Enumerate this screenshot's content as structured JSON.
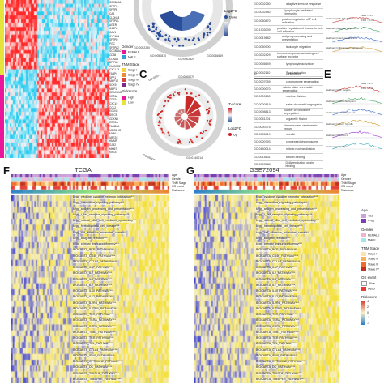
{
  "panels": {
    "C": "C",
    "E": "E",
    "F": "F",
    "G": "G"
  },
  "panelA": {
    "genes": [
      "SCGB1A1",
      "SFTPC",
      "SFTPB",
      "CA4",
      "CLDN18",
      "SFTPA1",
      "AGER",
      "C4BPA",
      "CAV1",
      "CYP4B1",
      "SFTPD",
      "PGC",
      "SFTPA2",
      "SCGB3A2",
      "CD36",
      "CCND1",
      "BPIFA1",
      "HMGCS2",
      "CXCL13",
      "FABP4",
      "SPP1",
      "MMP12",
      "SOX9",
      "MMP1",
      "CEACAM5",
      "KRT6A",
      "TOP2A",
      "CXCL9",
      "CCL2",
      "EGLN3",
      "BIRC5",
      "CDKN3",
      "ERO1A",
      "FAM83A",
      "MIR31HG",
      "MYBL2",
      "UBE2C",
      "HMMR",
      "GJB2",
      "MKI67",
      "KIF14"
    ],
    "legend": {
      "gender_title": "Gender",
      "gender_items": [
        "FEMALE",
        "MALE"
      ],
      "tnm_title": "TNM Stage",
      "tnm_items": [
        "Stage I",
        "Stage II",
        "Stage III",
        "Stage IV"
      ],
      "riskscore_title": "Riskscore",
      "riskscore_items": [
        "High",
        "Low"
      ]
    },
    "colors": {
      "pink": "#e8179b",
      "yellow": "#e6e43c",
      "blue": "#2b9fd6",
      "teal": "#5ad3c7"
    }
  },
  "circleB": {
    "legend_title": "Log2FC",
    "legend_items": [
      "Down",
      "Up"
    ],
    "ticks": [
      "GO:0002250",
      "GO:0050870",
      "GO:0002429",
      "GO:0046649",
      "GO:0042110"
    ]
  },
  "circleC": {
    "legend_zscore": "Z-score",
    "legend_logfc": "Log2FC",
    "legend_items": [
      "Up"
    ],
    "ticks": [
      "GO:0007059",
      "GO:0000070",
      "GO:0000819",
      "GO:0140014",
      "GO:0007067"
    ]
  },
  "goTableTop": {
    "rows": [
      {
        "id": "GO:0002250",
        "desc": "adaptive immune response"
      },
      {
        "id": "GO:0002460",
        "desc": "lymphocyte mediated immunity"
      },
      {
        "id": "GO:0050870",
        "desc": "positive regulation of T cell activation"
      },
      {
        "id": "GO:1903039",
        "desc": "positive regulation of leukocyte cell-cell adhesion"
      },
      {
        "id": "GO:0019882",
        "desc": "antigen processing and presentation"
      },
      {
        "id": "GO:0050900",
        "desc": "leukocyte migration"
      },
      {
        "id": "GO:0002429",
        "desc": "immune response-activating cell surface receptor"
      },
      {
        "id": "GO:0046649",
        "desc": "lymphocyte activation"
      },
      {
        "id": "GO:0042110",
        "desc": "T cell activation"
      },
      {
        "id": "GO:0050852",
        "desc": "T cell receptor signaling pathway"
      }
    ]
  },
  "goTableC": {
    "header": {
      "id": "ID",
      "desc": "Description"
    },
    "rows": [
      {
        "id": "GO:0007059",
        "desc": "chromosome segregation"
      },
      {
        "id": "GO:0000070",
        "desc": "mitotic sister chromatid segregation"
      },
      {
        "id": "GO:0000280",
        "desc": "nuclear division"
      },
      {
        "id": "GO:0000819",
        "desc": "sister chromatid segregation"
      },
      {
        "id": "GO:0098813",
        "desc": "nuclear chromosome segregation"
      },
      {
        "id": "GO:0051301",
        "desc": "organelle fission"
      },
      {
        "id": "GO:0000775",
        "desc": "chromosome, centromeric region"
      },
      {
        "id": "GO:0005819",
        "desc": "spindle"
      },
      {
        "id": "GO:0000793",
        "desc": "condensed chromosome"
      },
      {
        "id": "GO:0140014",
        "desc": "mitotic nuclear division"
      },
      {
        "id": "GO:0015631",
        "desc": "tubulin binding"
      },
      {
        "id": "GO:0003688",
        "desc": "DNA replication origin binding"
      }
    ]
  },
  "panelE": {
    "rows": [
      "[Hallmark] E2F Targets",
      "[Hallmark] G2M Checkpoint",
      "[Hallmark] MYC Targets V1",
      "[Hallmark] Mitotic Spindle",
      "[Hallmark] MTORC1",
      "[Hallmark] Glycolysis"
    ],
    "top_rows": [
      "[Hallmark] IL6 JAK STAT3",
      "[Hallmark] Allograft Rejection",
      "[Hallmark] Interferon Gamma",
      "[Hallmark] Inflammatory Response"
    ],
    "stats": [
      "NES = -1.8",
      "FDR < 0.05",
      "NES = 2.1",
      "FDR < 0.01"
    ]
  },
  "heatF": {
    "title": "TCGA",
    "annotations": [
      "Age",
      "Gender",
      "TNM Stage",
      "OS event",
      "Riskscore"
    ],
    "rows": [
      "kegg_cytokine_cytokine_receptor_interaction***",
      "kegg_chemokine_signaling_pathway***",
      "kegg_antigen_processing_and_presentation***",
      "kegg_t_cell_receptor_signaling_pathway***",
      "kegg_natural_killer_cell_mediated_cytotoxicity***",
      "kegg_hematopoietic_cell_lineage***",
      "kegg_cell_adhesion_molecules_cams***",
      "kegg_allograft_rejection***",
      "kegg_primary_immunodeficiency***",
      "BIOCARTA_BCR_PATHWAY***",
      "BIOCARTA_CD40_PATHWAY***",
      "BIOCARTA_CTLA4_PATHWAY***",
      "BIOCARTA_IL17_PATHWAY***",
      "BIOCARTA_IL2_PATHWAY***",
      "BIOCARTA_IL5_PATHWAY***",
      "BIOCARTA_IL7_PATHWAY***",
      "BIOCARTA_IL10_PATHWAY***",
      "BIOCARTA_IL12_PATHWAY***",
      "BIOCARTA_IL2RB_PATHWAY***",
      "BIOCARTA_IL22BP_PATHWAY***",
      "BIOCARTA_TCR_PATHWAY***",
      "BIOCARTA_TCRA_PATHWAY***",
      "BIOCARTA_CCR5_PATHWAY***",
      "BIOCARTA_TOB1_PATHWAY***",
      "BIOCARTA_TCR_PATHWAY***",
      "BIOCARTA_TEL_PATHWAY***",
      "BIOCARTA_CTLA4_PATHWAY***",
      "BIOCARTA_IFNA_PATHWAY***",
      "BIOCARTA_CYTOKINE_PATHWAY***",
      "BIOCARTA_DC_PATHWAY***",
      "BIOCARTA_TH1TH2_PATHWAY***",
      "BIOCARTA_THELPER_PATHWAY***"
    ]
  },
  "heatG": {
    "title": "GSE72094",
    "annotations": [
      "Age",
      "Gender",
      "TNM Stage",
      "OS event",
      "Riskscore"
    ],
    "rows": [
      "kegg_cytokine_cytokine_receptor_interaction***",
      "kegg_chemokine_signaling_pathway***",
      "kegg_antigen_processing_and_presentation***",
      "kegg_t_cell_receptor_signaling_pathway***",
      "kegg_natural_killer_cell_mediated_cytotoxicity***",
      "kegg_hematopoietic_cell_lineage***",
      "kegg_cell_adhesion_molecules_cams***",
      "kegg_allograft_rejection***",
      "kegg_primary_immunodeficiency***",
      "BIOCARTA_BCR_PATHWAY***",
      "BIOCARTA_CD40_PATHWAY***",
      "BIOCARTA_CTLA4_PATHWAY***",
      "BIOCARTA_IL17_PATHWAY***",
      "BIOCARTA_IL2_PATHWAY***",
      "BIOCARTA_IL5_PATHWAY***",
      "BIOCARTA_IL7_PATHWAY***",
      "BIOCARTA_IL10_PATHWAY***",
      "BIOCARTA_IL12_PATHWAY***",
      "BIOCARTA_IL2RB_PATHWAY***",
      "BIOCARTA_IL22BP_PATHWAY***",
      "BIOCARTA_TCR_PATHWAY***",
      "BIOCARTA_TCRA_PATHWAY***",
      "BIOCARTA_CCR5_PATHWAY***",
      "BIOCARTA_TOB1_PATHWAY***",
      "BIOCARTA_TCR_PATHWAY***",
      "BIOCARTA_TEL_PATHWAY***",
      "BIOCARTA_CTLA4_PATHWAY***",
      "BIOCARTA_IFNA_PATHWAY***",
      "BIOCARTA_CYTOKINE_PATHWAY***",
      "BIOCARTA_DC_PATHWAY***",
      "BIOCARTA_TH1TH2_PATHWAY***",
      "BIOCARTA_THELPER_PATHWAY***"
    ],
    "legend": {
      "age_title": "Age",
      "age_items": [
        ">65",
        "<=65"
      ],
      "gender_title": "Gender",
      "gender_items": [
        "FEMALE",
        "MALE"
      ],
      "tnm_title": "TNM Stage",
      "tnm_items": [
        "Stage I",
        "Stage II",
        "Stage III",
        "Stage IV"
      ],
      "os_title": "OS event",
      "os_items": [
        "Alive",
        "Dead"
      ],
      "risk_title": "Riskscore",
      "risk_ticks": [
        "4",
        "2",
        "0",
        "-2",
        "-4"
      ]
    }
  },
  "palette": {
    "heat_high": "#f4e04d",
    "heat_mid": "#f7f0c8",
    "heat_low": "#3b3ec9",
    "heatA_high": "#ff2a2a",
    "heatA_low": "#2ad0f0",
    "up_red": "#c81f2a",
    "down_blue": "#2a4e9a"
  }
}
